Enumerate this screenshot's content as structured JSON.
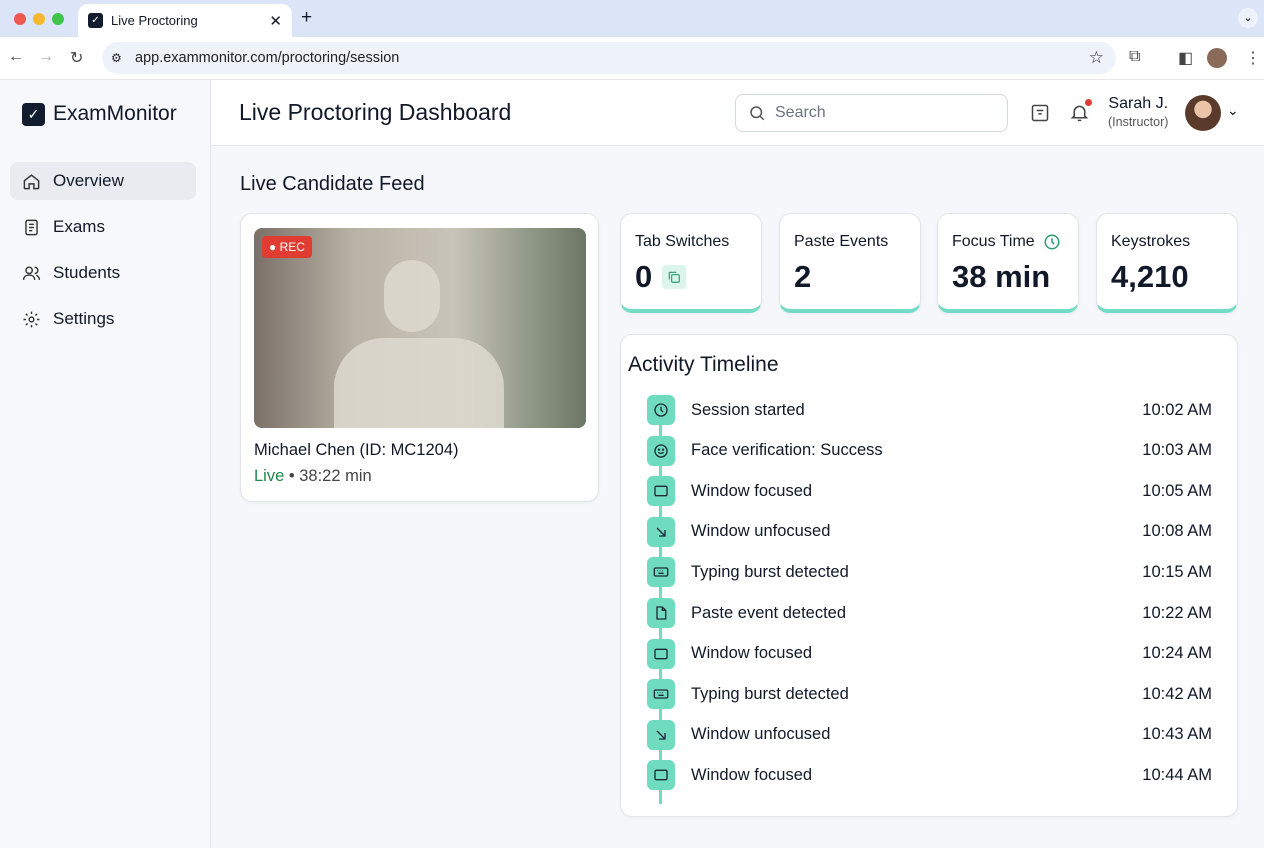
{
  "browser": {
    "tab_title": "Live Proctoring",
    "url": "app.exammonitor.com/proctoring/session"
  },
  "app": {
    "name": "ExamMonitor",
    "page_title": "Live Proctoring Dashboard"
  },
  "sidebar": {
    "items": [
      {
        "label": "Overview",
        "icon": "home-icon",
        "active": true
      },
      {
        "label": "Exams",
        "icon": "document-icon"
      },
      {
        "label": "Students",
        "icon": "users-icon"
      },
      {
        "label": "Settings",
        "icon": "gear-icon"
      }
    ]
  },
  "header": {
    "search_placeholder": "Search",
    "user_name": "Sarah J.",
    "user_role": "(Instructor)",
    "notification_dot_color": "#e53935"
  },
  "feed": {
    "heading": "Live Candidate Feed",
    "rec_label": "REC",
    "candidate": "Michael Chen (ID: MC1204)",
    "status": "Live",
    "separator": "•",
    "duration": "38:22 min"
  },
  "stats": [
    {
      "label": "Tab Switches",
      "value": "0"
    },
    {
      "label": "Paste Events",
      "value": "2"
    },
    {
      "label": "Focus Time",
      "value": "38 min"
    },
    {
      "label": "Keystrokes",
      "value": "4,210"
    }
  ],
  "timeline": {
    "heading": "Activity Timeline",
    "events": [
      {
        "label": "Session started",
        "time": "10:02 AM",
        "icon": "clock"
      },
      {
        "label": "Face verification: Success",
        "time": "10:03 AM",
        "icon": "smile"
      },
      {
        "label": "Window focused",
        "time": "10:05 AM",
        "icon": "window"
      },
      {
        "label": "Window unfocused",
        "time": "10:08 AM",
        "icon": "arrow"
      },
      {
        "label": "Typing burst detected",
        "time": "10:15 AM",
        "icon": "keyboard"
      },
      {
        "label": "Paste event detected",
        "time": "10:22 AM",
        "icon": "file"
      },
      {
        "label": "Window focused",
        "time": "10:24 AM",
        "icon": "window"
      },
      {
        "label": "Typing burst detected",
        "time": "10:42 AM",
        "icon": "keyboard"
      },
      {
        "label": "Window unfocused",
        "time": "10:43 AM",
        "icon": "arrow"
      },
      {
        "label": "Window focused",
        "time": "10:44 AM",
        "icon": "window"
      }
    ]
  },
  "colors": {
    "accent": "#6fdcc0",
    "live": "#1f8a4c",
    "rec": "#e03c31"
  }
}
